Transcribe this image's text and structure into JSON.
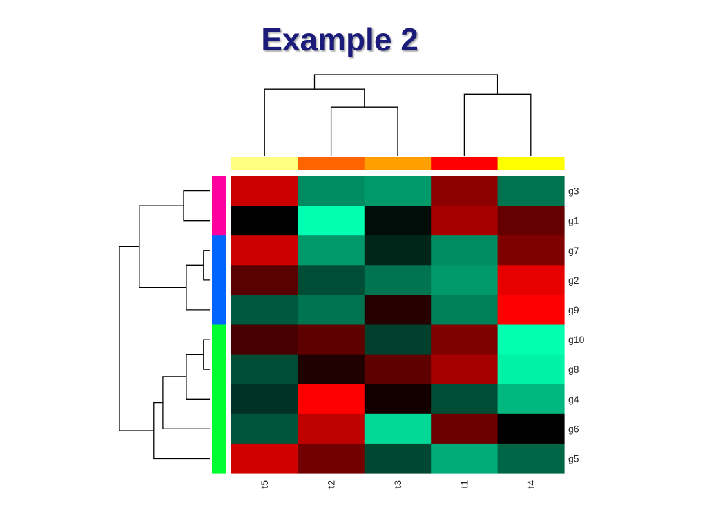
{
  "slide": {
    "title": "Example 2"
  },
  "colors": {
    "title": "#1b1b7a",
    "low": "#00ffb0",
    "mid": "#000000",
    "high": "#ff0000"
  },
  "chart_data": {
    "type": "heatmap",
    "title": "Example 2",
    "columns": [
      "t5",
      "t2",
      "t3",
      "t1",
      "t4"
    ],
    "rows": [
      "g3",
      "g1",
      "g7",
      "g2",
      "g9",
      "g10",
      "g8",
      "g4",
      "g6",
      "g5"
    ],
    "values": [
      [
        0.8,
        -0.55,
        -0.6,
        0.55,
        -0.45
      ],
      [
        0.0,
        -1.0,
        -0.05,
        0.65,
        0.4
      ],
      [
        0.8,
        -0.6,
        -0.15,
        -0.55,
        0.5
      ],
      [
        0.35,
        -0.3,
        -0.45,
        -0.6,
        0.9
      ],
      [
        -0.35,
        -0.45,
        0.15,
        -0.5,
        1.0
      ],
      [
        0.28,
        0.37,
        -0.25,
        0.5,
        -1.0
      ],
      [
        -0.3,
        0.12,
        0.37,
        0.65,
        -0.95
      ],
      [
        -0.2,
        1.0,
        0.07,
        -0.3,
        -0.72
      ],
      [
        -0.33,
        0.75,
        -0.85,
        0.42,
        0.0
      ],
      [
        0.82,
        0.45,
        -0.28,
        -0.68,
        -0.4
      ]
    ],
    "color_scale": {
      "min": -1,
      "max": 1,
      "low_color": "#00ffb0",
      "mid_color": "#000000",
      "high_color": "#ff0000"
    },
    "column_group_colors": [
      "#ffff80",
      "#ff6400",
      "#ffa000",
      "#ff0000",
      "#ffff00"
    ],
    "row_group_colors": [
      "#ff00a0",
      "#ff00a0",
      "#0064ff",
      "#0064ff",
      "#0064ff",
      "#00ff30",
      "#00ff30",
      "#00ff30",
      "#00ff30",
      "#00ff30"
    ],
    "column_dendrogram": [
      {
        "a": "t2",
        "b": "t3",
        "height": 0.6
      },
      {
        "a": "t1",
        "b": "t4",
        "height": 0.76
      },
      {
        "a": "t5",
        "b": "[t2,t3]",
        "height": 0.82
      },
      {
        "a": "[t5,t2,t3]",
        "b": "[t1,t4]",
        "height": 1.0
      }
    ],
    "row_dendrogram": [
      {
        "a": "g7",
        "b": "g2",
        "height": 0.07
      },
      {
        "a": "[g7,g2]",
        "b": "g9",
        "height": 0.26
      },
      {
        "a": "g3",
        "b": "g1",
        "height": 0.29
      },
      {
        "a": "g10",
        "b": "g8",
        "height": 0.07
      },
      {
        "a": "[g10,g8]",
        "b": "g4",
        "height": 0.26
      },
      {
        "a": "[g10,g8,g4]",
        "b": "g6",
        "height": 0.52
      },
      {
        "a": "[g10,g8,g4,g6]",
        "b": "g5",
        "height": 0.62
      },
      {
        "a": "[g3,g1]",
        "b": "[g7,g2,g9]",
        "height": 0.78
      },
      {
        "a": "[g3,g1,g7,g2,g9]",
        "b": "[g10,g8,g4,g6,g5]",
        "height": 1.0
      }
    ],
    "grid": false,
    "legend": "none"
  }
}
